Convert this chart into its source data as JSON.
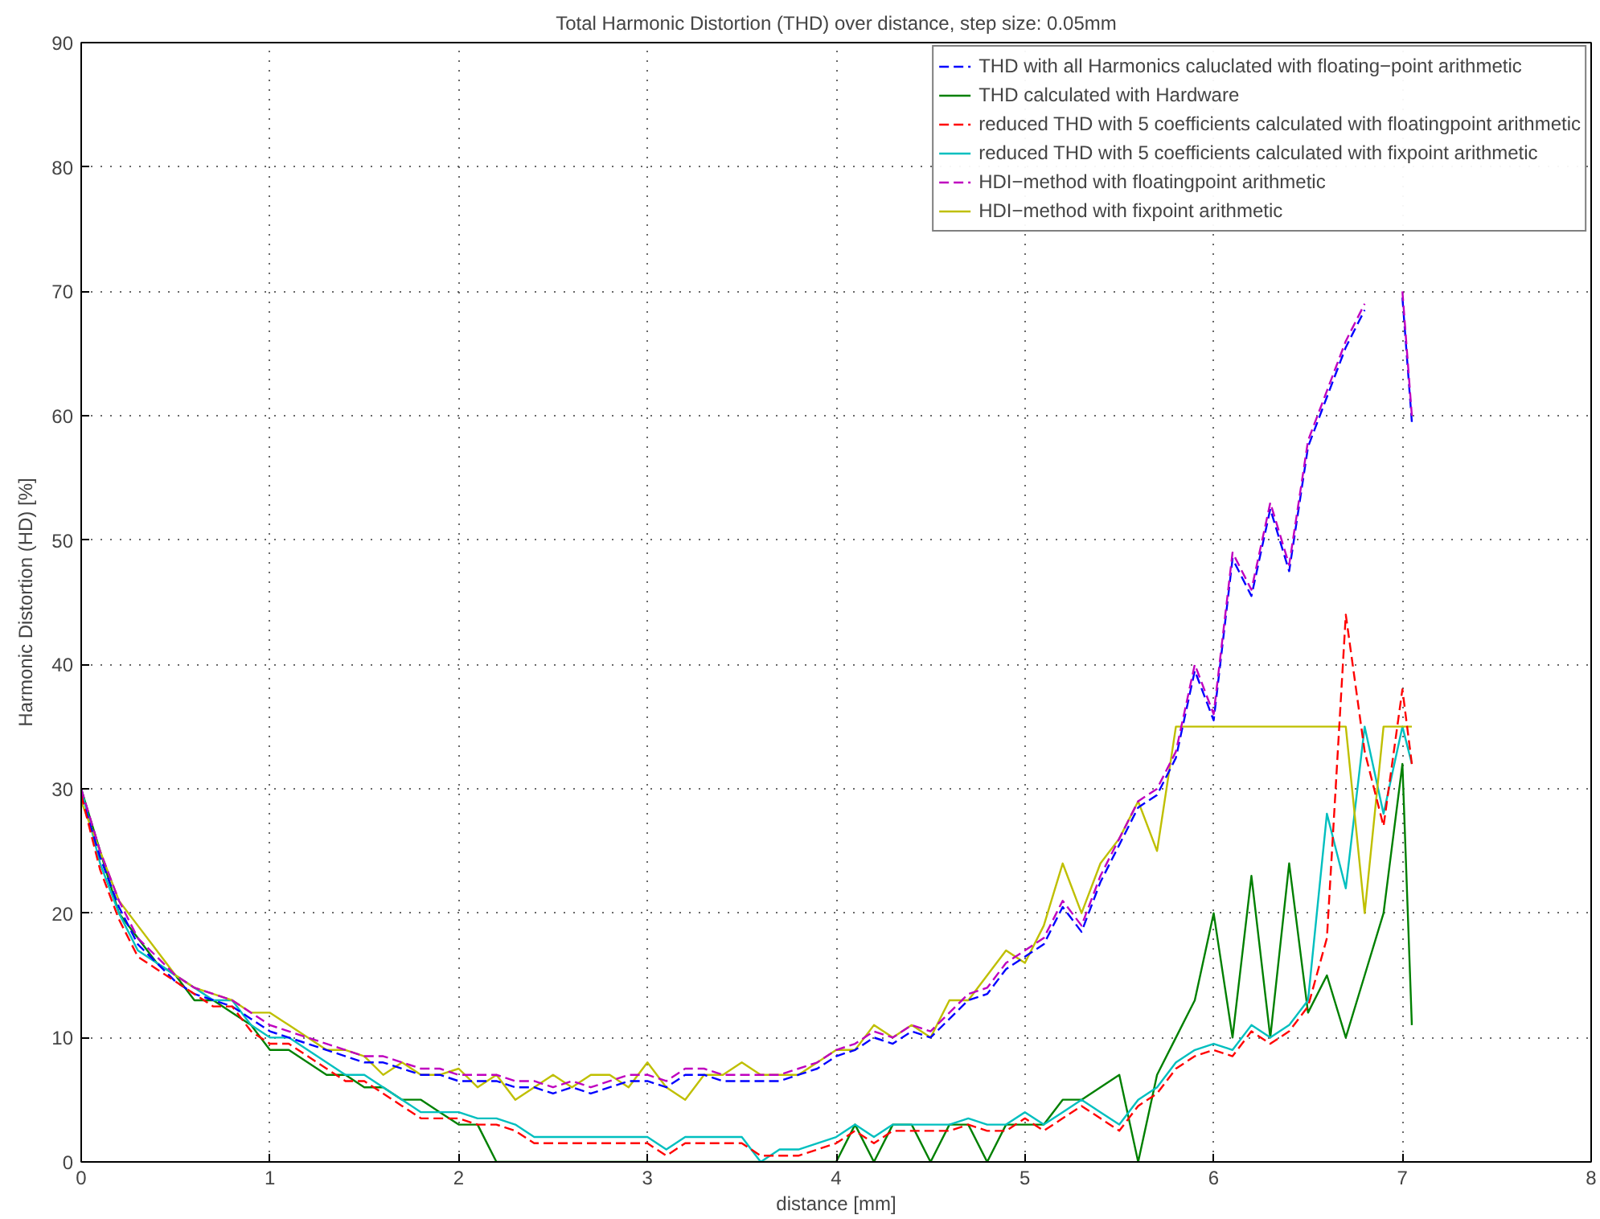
{
  "chart_data": {
    "type": "line",
    "title": "Total Harmonic Distortion (THD) over distance, step size: 0.05mm",
    "xlabel": "distance [mm]",
    "ylabel": "Harmonic Distortion (HD) [%]",
    "x": [
      0,
      0.1,
      0.2,
      0.3,
      0.4,
      0.5,
      0.6,
      0.7,
      0.8,
      0.9,
      1.0,
      1.1,
      1.2,
      1.3,
      1.4,
      1.5,
      1.6,
      1.7,
      1.8,
      1.9,
      2.0,
      2.1,
      2.2,
      2.3,
      2.4,
      2.5,
      2.6,
      2.7,
      2.8,
      2.9,
      3.0,
      3.1,
      3.2,
      3.3,
      3.4,
      3.5,
      3.6,
      3.7,
      3.8,
      3.9,
      4.0,
      4.1,
      4.2,
      4.3,
      4.4,
      4.5,
      4.6,
      4.7,
      4.8,
      4.9,
      5.0,
      5.1,
      5.2,
      5.3,
      5.4,
      5.5,
      5.6,
      5.7,
      5.8,
      5.9,
      6.0,
      6.1,
      6.2,
      6.3,
      6.4,
      6.5,
      6.6,
      6.7,
      6.8,
      6.9,
      7.0,
      7.05
    ],
    "series": [
      {
        "name": "THD with all Harmonics caluclated with floating−point arithmetic",
        "color": "#0000ff",
        "line_style": "dashed",
        "values": [
          29.5,
          24.5,
          20.5,
          17.5,
          16,
          14.5,
          13.5,
          13,
          12.5,
          11.5,
          10.5,
          10,
          9.5,
          9,
          8.5,
          8,
          8,
          7.5,
          7,
          7,
          6.5,
          6.5,
          6.5,
          6,
          6,
          5.5,
          6,
          5.5,
          6,
          6.5,
          6.5,
          6,
          7,
          7,
          6.5,
          6.5,
          6.5,
          6.5,
          7,
          7.5,
          8.5,
          9,
          10,
          9.5,
          10.5,
          10,
          11.5,
          13,
          13.5,
          15.5,
          16.5,
          17.5,
          20.5,
          18.5,
          22.5,
          25.5,
          28.5,
          29.5,
          32.5,
          39.5,
          35.5,
          48.5,
          45.5,
          52.5,
          47.5,
          57.5,
          61.5,
          65.5,
          68.5,
          null,
          69.5,
          59.5
        ]
      },
      {
        "name": "THD calculated with Hardware",
        "color": "#008000",
        "line_style": "solid",
        "values": [
          30,
          25,
          20,
          18,
          16,
          15,
          13,
          13,
          12,
          11,
          9,
          9,
          8,
          7,
          7,
          6,
          6,
          5,
          5,
          4,
          3,
          3,
          0,
          0,
          0,
          0,
          0,
          0,
          0,
          0,
          0,
          0,
          0,
          0,
          0,
          0,
          0,
          0,
          0,
          0,
          0,
          3,
          0,
          3,
          3,
          0,
          3,
          3,
          0,
          3,
          3,
          3,
          5,
          5,
          6,
          7,
          0,
          7,
          10,
          13,
          20,
          10,
          23,
          10,
          24,
          12,
          15,
          10,
          15,
          20,
          32,
          11
        ]
      },
      {
        "name": "reduced THD with 5 coefficients calculated with floatingpoint arithmetic",
        "color": "#ff0000",
        "line_style": "dashed",
        "values": [
          29.5,
          23.5,
          19.5,
          16.5,
          15.5,
          14.5,
          13.5,
          12.5,
          12.5,
          10.5,
          9.5,
          9.5,
          8.5,
          7.5,
          6.5,
          6.5,
          5.5,
          4.5,
          3.5,
          3.5,
          3.5,
          3,
          3,
          2.5,
          1.5,
          1.5,
          1.5,
          1.5,
          1.5,
          1.5,
          1.5,
          0.5,
          1.5,
          1.5,
          1.5,
          1.5,
          0.5,
          0.5,
          0.5,
          1,
          1.5,
          2.5,
          1.5,
          2.5,
          2.5,
          2.5,
          2.5,
          3,
          2.5,
          2.5,
          3.5,
          2.5,
          3.5,
          4.5,
          3.5,
          2.5,
          4.5,
          5.5,
          7.5,
          8.5,
          9,
          8.5,
          10.5,
          9.5,
          10.5,
          12.5,
          18,
          44,
          33,
          27,
          38,
          32
        ]
      },
      {
        "name": "reduced THD with 5 coefficients calculated with fixpoint arithmetic",
        "color": "#00bfbf",
        "line_style": "solid",
        "values": [
          30,
          24,
          20,
          17,
          16,
          15,
          14,
          13,
          13,
          11,
          10,
          10,
          9,
          8,
          7,
          7,
          6,
          5,
          4,
          4,
          4,
          3.5,
          3.5,
          3,
          2,
          2,
          2,
          2,
          2,
          2,
          2,
          1,
          2,
          2,
          2,
          2,
          0,
          1,
          1,
          1.5,
          2,
          3,
          2,
          3,
          3,
          3,
          3,
          3.5,
          3,
          3,
          4,
          3,
          4,
          5,
          4,
          3,
          5,
          6,
          8,
          9,
          9.5,
          9,
          11,
          10,
          11,
          13,
          28,
          22,
          35,
          28,
          35,
          32
        ]
      },
      {
        "name": "HDI−method with floatingpoint arithmetic",
        "color": "#bf00bf",
        "line_style": "dashed",
        "values": [
          30,
          25,
          21,
          18,
          16.5,
          15,
          14,
          13.5,
          13,
          12,
          11,
          10.5,
          10,
          9.5,
          9,
          8.5,
          8.5,
          8,
          7.5,
          7.5,
          7,
          7,
          7,
          6.5,
          6.5,
          6,
          6.5,
          6,
          6.5,
          7,
          7,
          6.5,
          7.5,
          7.5,
          7,
          7,
          7,
          7,
          7.5,
          8,
          9,
          9.5,
          10.5,
          10,
          11,
          10.5,
          12,
          13.5,
          14,
          16,
          17,
          18,
          21,
          19,
          23,
          26,
          29,
          30,
          33,
          40,
          36,
          49,
          46,
          53,
          48,
          58,
          62,
          66,
          69,
          null,
          70,
          60
        ]
      },
      {
        "name": "HDI−method with fixpoint arithmetic",
        "color": "#bfbf00",
        "line_style": "solid",
        "values": [
          29,
          25,
          21,
          19,
          17,
          15,
          14,
          13.5,
          13,
          12,
          12,
          11,
          10,
          9,
          9,
          8.5,
          7,
          8,
          7,
          7,
          7.5,
          6,
          7,
          5,
          6,
          7,
          6,
          7,
          7,
          6,
          8,
          6,
          5,
          7,
          7,
          8,
          7,
          7,
          7,
          8,
          9,
          9,
          11,
          10,
          11,
          10,
          13,
          13,
          15,
          17,
          16,
          19,
          24,
          20,
          24,
          26,
          29,
          25,
          35,
          35,
          35,
          35,
          35,
          35,
          35,
          35,
          35,
          35,
          20,
          35,
          35,
          35
        ]
      }
    ],
    "xlim": [
      0,
      8
    ],
    "xticks": [
      0,
      1,
      2,
      3,
      4,
      5,
      6,
      7,
      8
    ],
    "ylim": [
      0,
      90
    ],
    "yticks": [
      0,
      10,
      20,
      30,
      40,
      50,
      60,
      70,
      80,
      90
    ],
    "grid": true,
    "legend": "top right"
  }
}
